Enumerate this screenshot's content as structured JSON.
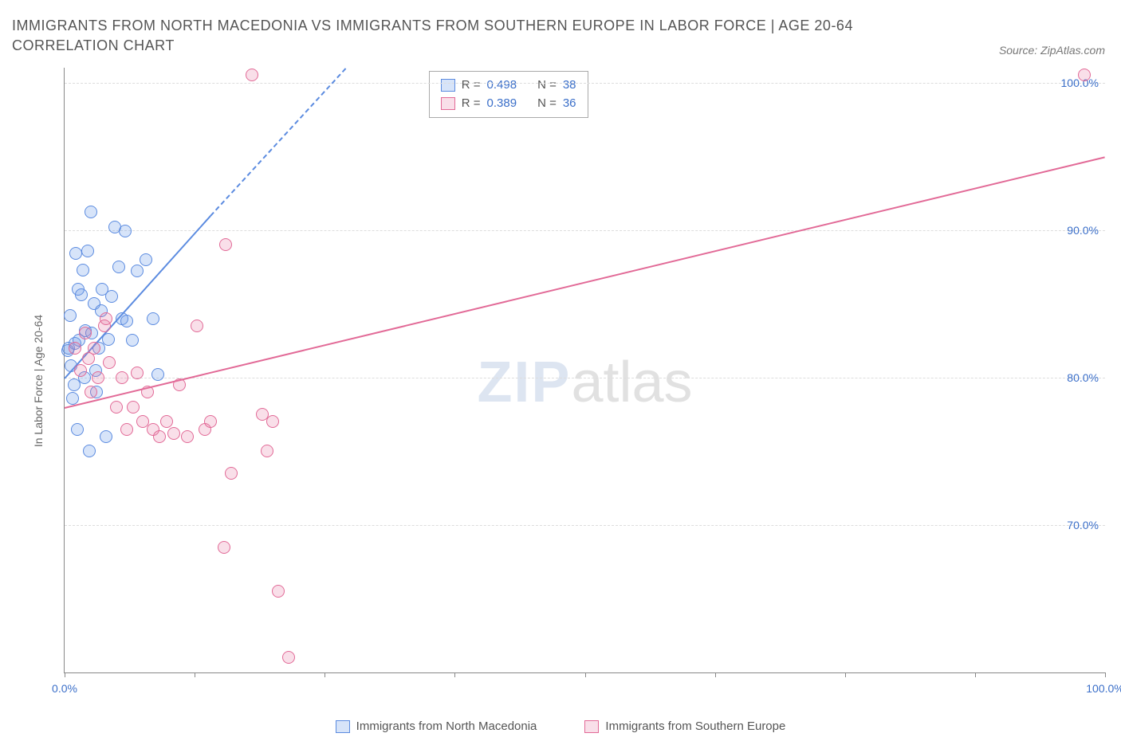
{
  "title": "IMMIGRANTS FROM NORTH MACEDONIA VS IMMIGRANTS FROM SOUTHERN EUROPE IN LABOR FORCE | AGE 20-64 CORRELATION CHART",
  "source": "Source: ZipAtlas.com",
  "ylabel": "In Labor Force | Age 20-64",
  "watermark_zip": "ZIP",
  "watermark_atlas": "atlas",
  "chart": {
    "type": "scatter",
    "xlim": [
      0,
      100
    ],
    "ylim": [
      60,
      101
    ],
    "ytick_labels": [
      "70.0%",
      "80.0%",
      "90.0%",
      "100.0%"
    ],
    "ytick_values": [
      70,
      80,
      90,
      100
    ],
    "xtick_values": [
      0,
      12.5,
      25,
      37.5,
      50,
      62.5,
      75,
      87.5,
      100
    ],
    "xtick_labels": {
      "0": "0.0%",
      "100": "100.0%"
    },
    "background_color": "#ffffff",
    "grid_color": "#dddddd",
    "axis_color": "#888888",
    "text_color": "#555555",
    "tick_label_color": "#3b6fc9",
    "series": [
      {
        "name": "Immigrants from North Macedonia",
        "color": "#6f9de8",
        "fill": "rgba(111,157,232,0.28)",
        "border": "#5b8be0",
        "R": "0.498",
        "N": "38",
        "points": [
          [
            0.3,
            81.8
          ],
          [
            0.4,
            82.0
          ],
          [
            0.5,
            84.2
          ],
          [
            0.8,
            78.6
          ],
          [
            1.0,
            82.3
          ],
          [
            1.1,
            88.4
          ],
          [
            1.3,
            86.0
          ],
          [
            1.4,
            82.5
          ],
          [
            1.6,
            85.6
          ],
          [
            1.8,
            87.3
          ],
          [
            1.9,
            80.0
          ],
          [
            2.0,
            83.2
          ],
          [
            2.2,
            88.6
          ],
          [
            2.5,
            91.2
          ],
          [
            2.6,
            83.0
          ],
          [
            2.8,
            85.0
          ],
          [
            3.0,
            80.5
          ],
          [
            3.1,
            79.0
          ],
          [
            3.3,
            82.0
          ],
          [
            3.6,
            86.0
          ],
          [
            4.0,
            76.0
          ],
          [
            4.2,
            82.6
          ],
          [
            4.8,
            90.2
          ],
          [
            5.5,
            84.0
          ],
          [
            5.8,
            89.9
          ],
          [
            6.0,
            83.8
          ],
          [
            6.5,
            82.5
          ],
          [
            7.0,
            87.2
          ],
          [
            7.8,
            88.0
          ],
          [
            8.5,
            84.0
          ],
          [
            9.0,
            80.2
          ],
          [
            2.4,
            75.0
          ],
          [
            1.2,
            76.5
          ],
          [
            0.9,
            79.5
          ],
          [
            3.5,
            84.5
          ],
          [
            4.5,
            85.5
          ],
          [
            0.6,
            80.8
          ],
          [
            5.2,
            87.5
          ]
        ],
        "trend": {
          "x1": 0,
          "y1": 80.0,
          "x2": 14,
          "y2": 91.0
        },
        "trend_extend": {
          "x1": 14,
          "y1": 91.0,
          "x2": 27,
          "y2": 101.0
        }
      },
      {
        "name": "Immigrants from Southern Europe",
        "color": "#e87ba3",
        "fill": "rgba(232,123,163,0.24)",
        "border": "#e26a97",
        "R": "0.389",
        "N": "36",
        "points": [
          [
            1.0,
            82.0
          ],
          [
            1.5,
            80.5
          ],
          [
            2.0,
            83.0
          ],
          [
            2.3,
            81.3
          ],
          [
            2.8,
            82.0
          ],
          [
            3.2,
            80.0
          ],
          [
            3.8,
            83.5
          ],
          [
            4.3,
            81.0
          ],
          [
            5.0,
            78.0
          ],
          [
            5.5,
            80.0
          ],
          [
            6.0,
            76.5
          ],
          [
            6.6,
            78.0
          ],
          [
            7.0,
            80.3
          ],
          [
            7.5,
            77.0
          ],
          [
            8.0,
            79.0
          ],
          [
            8.5,
            76.5
          ],
          [
            9.1,
            76.0
          ],
          [
            9.8,
            77.0
          ],
          [
            10.5,
            76.2
          ],
          [
            11.0,
            79.5
          ],
          [
            11.8,
            76.0
          ],
          [
            12.7,
            83.5
          ],
          [
            13.5,
            76.5
          ],
          [
            14.0,
            77.0
          ],
          [
            15.5,
            89.0
          ],
          [
            16.0,
            73.5
          ],
          [
            18.0,
            100.5
          ],
          [
            19.0,
            77.5
          ],
          [
            20.0,
            77.0
          ],
          [
            15.3,
            68.5
          ],
          [
            19.5,
            75.0
          ],
          [
            20.5,
            65.5
          ],
          [
            21.5,
            61.0
          ],
          [
            98.0,
            100.5
          ],
          [
            4.0,
            84.0
          ],
          [
            2.5,
            79.0
          ]
        ],
        "trend": {
          "x1": 0,
          "y1": 78.0,
          "x2": 100,
          "y2": 95.0
        }
      }
    ]
  },
  "legend_box": {
    "rows": [
      {
        "swatch": 0,
        "r_label": "R =",
        "r_val": "0.498",
        "n_label": "N =",
        "n_val": "38"
      },
      {
        "swatch": 1,
        "r_label": "R =",
        "r_val": "0.389",
        "n_label": "N =",
        "n_val": "36"
      }
    ]
  },
  "bottom_legend": [
    {
      "swatch": 0,
      "label": "Immigrants from North Macedonia"
    },
    {
      "swatch": 1,
      "label": "Immigrants from Southern Europe"
    }
  ]
}
